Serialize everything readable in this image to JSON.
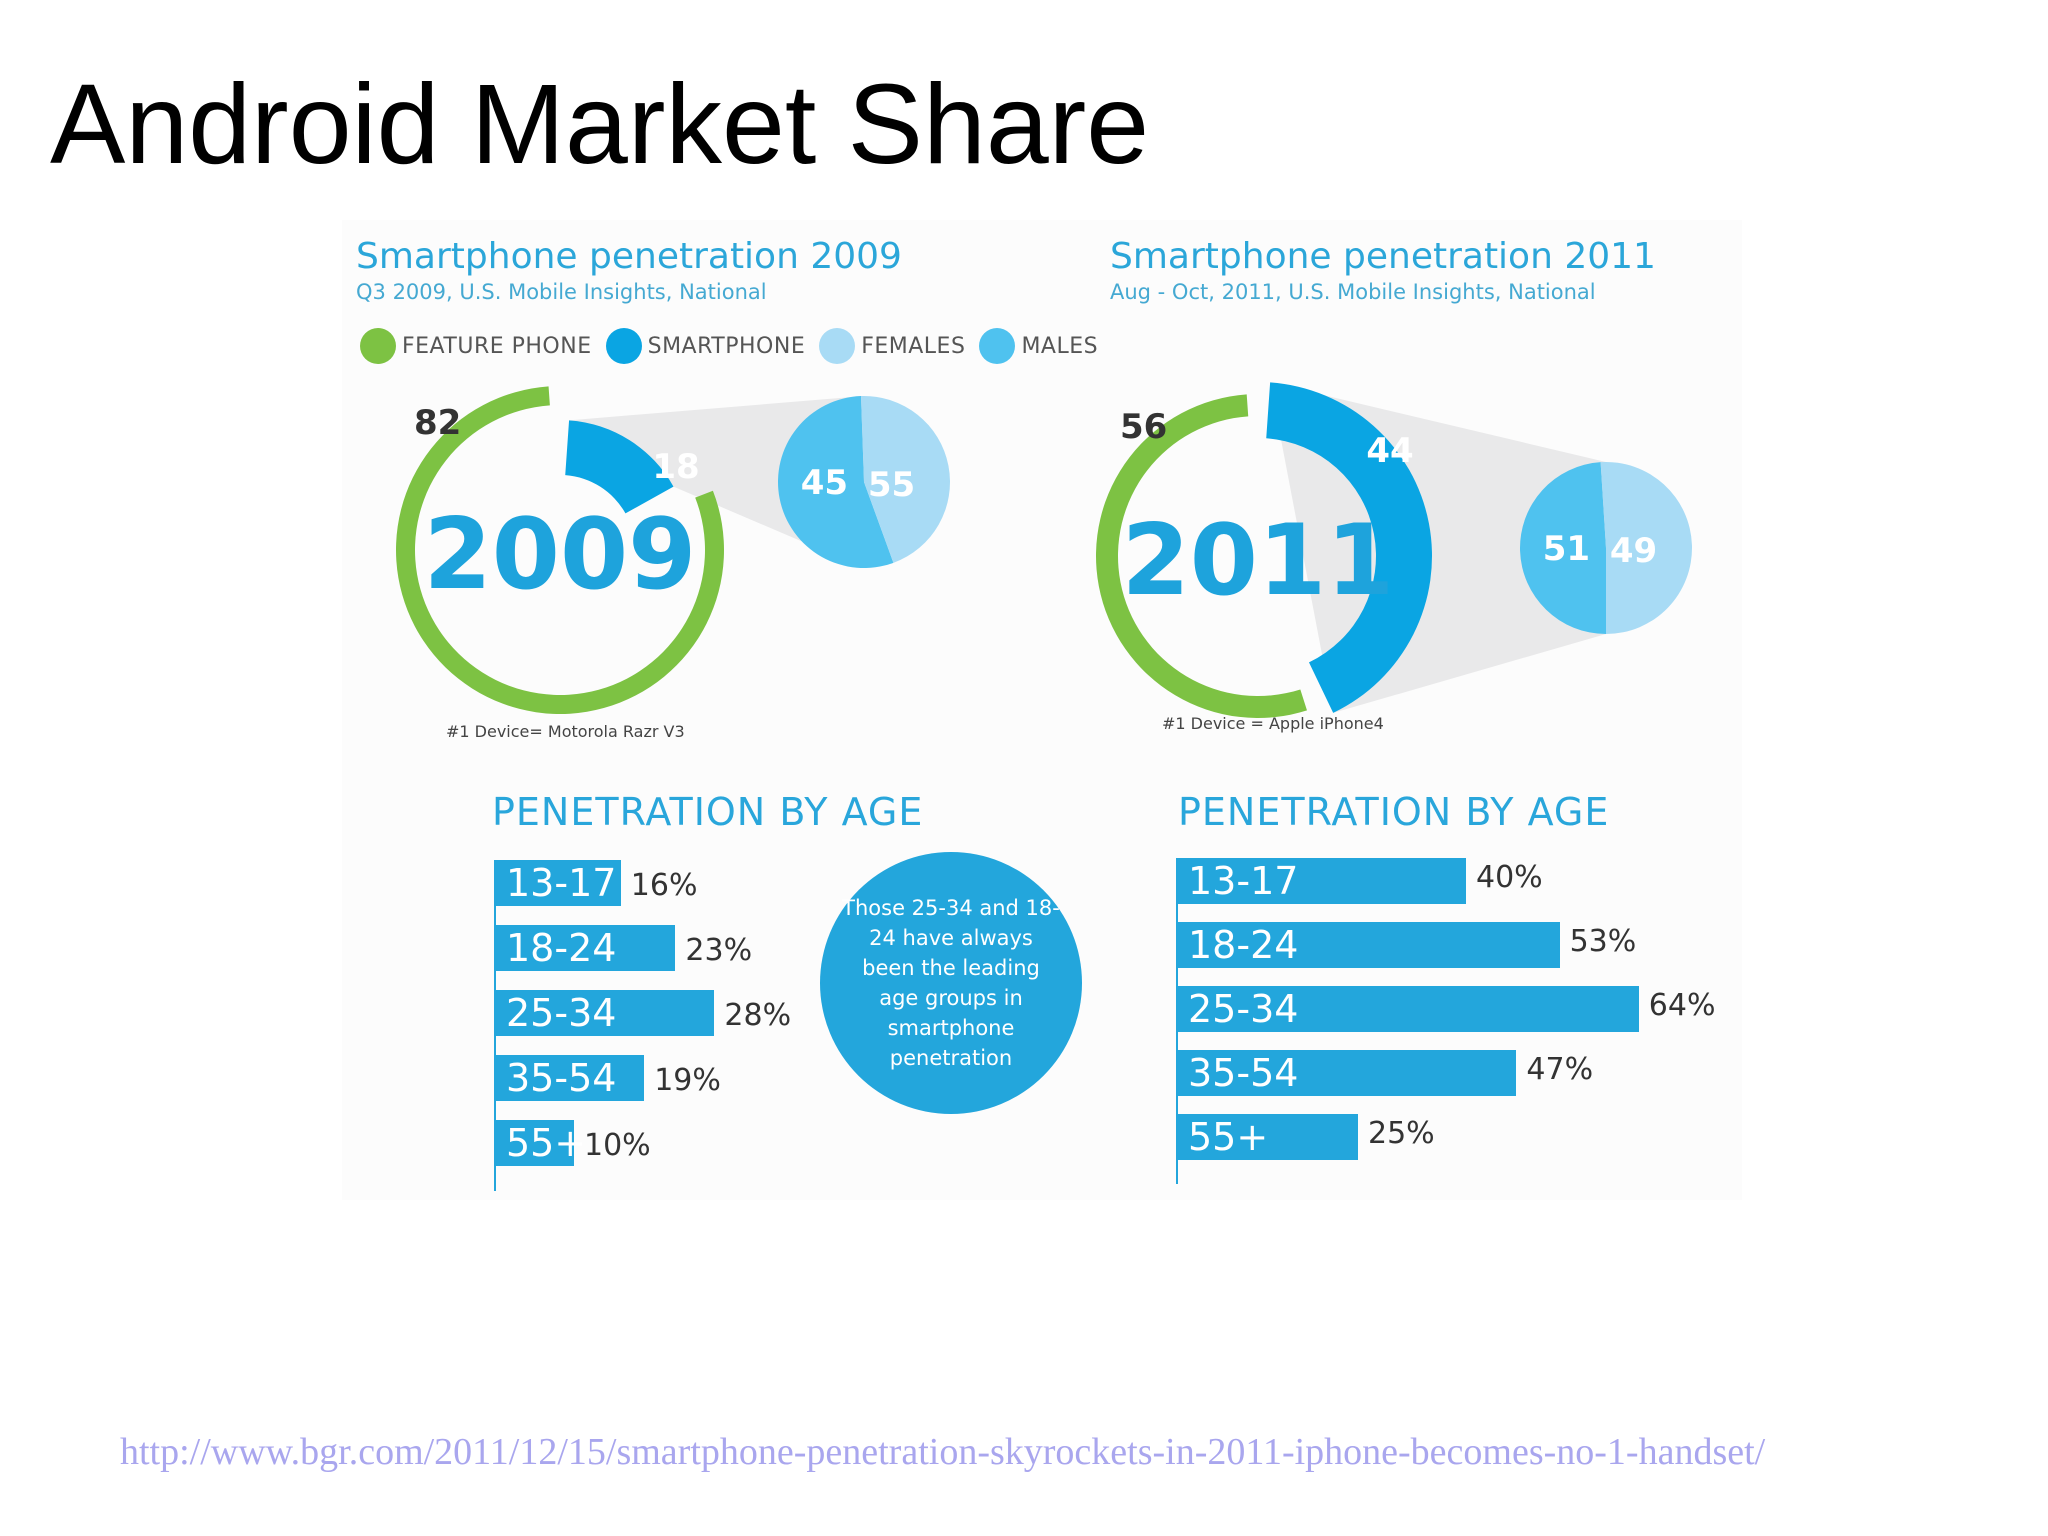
{
  "slide": {
    "title": "Android Market Share",
    "source_url": "http://www.bgr.com/2011/12/15/smartphone-penetration-skyrockets-in-2011-iphone-becomes-no-1-handset/"
  },
  "legend": [
    {
      "label": "FEATURE PHONE",
      "color": "#7dc243"
    },
    {
      "label": "SMARTPHONE",
      "color": "#0aa5e3"
    },
    {
      "label": "FEMALES",
      "color": "#a8dbf5"
    },
    {
      "label": "MALES",
      "color": "#4fc2ef"
    }
  ],
  "callout": "Those 25-34 and 18-24 have always been the leading age groups in smartphone penetration",
  "chart_data": [
    {
      "type": "pie",
      "title": "Smartphone penetration 2009",
      "subtitle": "Q3 2009, U.S. Mobile Insights, National",
      "center_label": "2009",
      "slices": [
        {
          "name": "FEATURE PHONE",
          "value": 82
        },
        {
          "name": "SMARTPHONE",
          "value": 18
        }
      ],
      "gender_breakdown": [
        {
          "name": "FEMALES",
          "value": 45
        },
        {
          "name": "MALES",
          "value": 55
        }
      ],
      "note": "#1 Device= Motorola Razr V3"
    },
    {
      "type": "pie",
      "title": "Smartphone penetration 2011",
      "subtitle": "Aug - Oct, 2011, U.S. Mobile Insights, National",
      "center_label": "2011",
      "slices": [
        {
          "name": "FEATURE PHONE",
          "value": 56
        },
        {
          "name": "SMARTPHONE",
          "value": 44
        }
      ],
      "gender_breakdown": [
        {
          "name": "FEMALES",
          "value": 51
        },
        {
          "name": "MALES",
          "value": 49
        }
      ],
      "note": "#1 Device = Apple iPhone4"
    },
    {
      "type": "bar",
      "title": "PENETRATION BY AGE",
      "categories": [
        "13-17",
        "18-24",
        "25-34",
        "35-54",
        "55+"
      ],
      "values": [
        16,
        23,
        28,
        19,
        10
      ],
      "labels": [
        "16%",
        "23%",
        "28%",
        "19%",
        "10%"
      ],
      "orientation": "horizontal"
    },
    {
      "type": "bar",
      "title": "PENETRATION BY AGE",
      "categories": [
        "13-17",
        "18-24",
        "25-34",
        "35-54",
        "55+"
      ],
      "values": [
        40,
        53,
        64,
        47,
        25
      ],
      "labels": [
        "40%",
        "53%",
        "64%",
        "47%",
        "25%"
      ],
      "orientation": "horizontal"
    }
  ]
}
